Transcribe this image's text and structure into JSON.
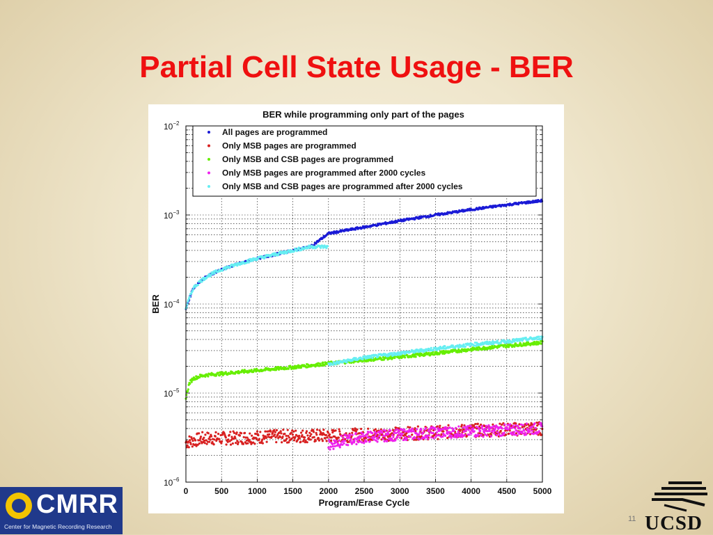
{
  "slide": {
    "title": "Partial Cell State Usage - BER",
    "page_number": "11"
  },
  "logos": {
    "cmrr_name": "CMRR",
    "cmrr_subtitle": "Center for Magnetic Recording Research",
    "ucsd_name": "UCSD"
  },
  "colors": {
    "title": "#ef1010",
    "all_pages": "#1a1ad6",
    "msb_only": "#d82020",
    "msb_csb": "#66ee00",
    "msb_after_2000": "#ee22ee",
    "msb_csb_after_2000": "#66eef2"
  },
  "chart_data": {
    "type": "scatter",
    "title": "BER while programming only part of the pages",
    "xlabel": "Program/Erase Cycle",
    "ylabel": "BER",
    "x_scale": "linear",
    "y_scale": "log",
    "xlim": [
      0,
      5000
    ],
    "ylim": [
      1e-06,
      0.01
    ],
    "x_ticks": [
      "0",
      "500",
      "1000",
      "1500",
      "2000",
      "2500",
      "3000",
      "3500",
      "4000",
      "4500",
      "5000"
    ],
    "y_ticks": [
      {
        "base": "10",
        "exp": "−6"
      },
      {
        "base": "10",
        "exp": "−5"
      },
      {
        "base": "10",
        "exp": "−4"
      },
      {
        "base": "10",
        "exp": "−3"
      },
      {
        "base": "10",
        "exp": "−2"
      }
    ],
    "grid": true,
    "legend_position": "top",
    "series": [
      {
        "name": "All pages are programmed",
        "color": "#1a1ad6",
        "x": [
          0,
          100,
          200,
          300,
          400,
          500,
          750,
          1000,
          1250,
          1500,
          1750,
          2000,
          2500,
          3000,
          3500,
          4000,
          4500,
          5000
        ],
        "y": [
          9e-05,
          0.00015,
          0.00018,
          0.000205,
          0.000225,
          0.000245,
          0.000285,
          0.000325,
          0.00036,
          0.0004,
          0.00044,
          0.00062,
          0.00073,
          0.00086,
          0.001,
          0.00115,
          0.0013,
          0.00145
        ]
      },
      {
        "name": "Only MSB pages are programmed",
        "color": "#d82020",
        "x": [
          0,
          250,
          500,
          1000,
          1500,
          2000,
          2500,
          3000,
          3500,
          4000,
          4500,
          5000
        ],
        "y": [
          2.8e-06,
          3.1e-06,
          3.1e-06,
          3.2e-06,
          3.3e-06,
          3.3e-06,
          3.4e-06,
          3.5e-06,
          3.6e-06,
          3.8e-06,
          3.9e-06,
          4e-06
        ]
      },
      {
        "name": "Only MSB and CSB pages are programmed",
        "color": "#66ee00",
        "x": [
          0,
          50,
          100,
          200,
          300,
          500,
          1000,
          1500,
          2000,
          2500,
          3000,
          3500,
          4000,
          4500,
          5000
        ],
        "y": [
          9e-06,
          1.3e-05,
          1.45e-05,
          1.55e-05,
          1.6e-05,
          1.65e-05,
          1.8e-05,
          1.95e-05,
          2.15e-05,
          2.35e-05,
          2.55e-05,
          2.8e-05,
          3.1e-05,
          3.4e-05,
          3.7e-05
        ]
      },
      {
        "name": "Only MSB pages are programmed after 2000 cycles",
        "color": "#ee22ee",
        "x": [
          2000,
          2100,
          2200,
          2400,
          2600,
          3000,
          3500,
          4000,
          4500,
          5000
        ],
        "y": [
          2.6e-06,
          2.75e-06,
          2.9e-06,
          3.1e-06,
          3.25e-06,
          3.4e-06,
          3.6e-06,
          3.7e-06,
          3.85e-06,
          4e-06
        ]
      },
      {
        "name": "Only MSB and CSB pages are programmed after 2000 cycles",
        "color": "#66eef2",
        "x": [
          0,
          100,
          200,
          300,
          400,
          500,
          750,
          1000,
          1250,
          1500,
          1750,
          2000,
          2500,
          3000,
          3500,
          4000,
          4500,
          5000
        ],
        "y": [
          9e-05,
          0.00015,
          0.00018,
          0.000205,
          0.000225,
          0.000245,
          0.000285,
          0.000325,
          0.00036,
          0.0004,
          0.00044,
          2.1e-05,
          2.5e-05,
          2.8e-05,
          3.15e-05,
          3.5e-05,
          3.8e-05,
          4.2e-05
        ]
      }
    ]
  }
}
